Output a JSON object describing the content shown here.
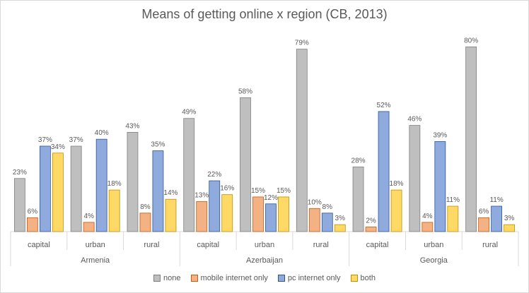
{
  "chart_data": {
    "type": "bar",
    "title": "Means of getting online x region (CB, 2013)",
    "xlabel": "",
    "ylabel": "",
    "ylim": [
      0,
      85
    ],
    "groups": [
      {
        "name": "Armenia",
        "categories": [
          "capital",
          "urban",
          "rural"
        ]
      },
      {
        "name": "Azerbaijan",
        "categories": [
          "capital",
          "urban",
          "rural"
        ]
      },
      {
        "name": "Georgia",
        "categories": [
          "capital",
          "urban",
          "rural"
        ]
      }
    ],
    "series": [
      {
        "name": "none",
        "color": "#bfbfbf",
        "border": "#7f7f7f",
        "values": [
          23,
          37,
          43,
          49,
          58,
          79,
          28,
          46,
          80
        ],
        "labels": [
          "23%",
          "37%",
          "43%",
          "49%",
          "58%",
          "79%",
          "28%",
          "46%",
          "80%"
        ]
      },
      {
        "name": "mobile internet only",
        "color": "#f4b183",
        "border": "#c55a11",
        "values": [
          6,
          4,
          8,
          13,
          15,
          10,
          2,
          4,
          6
        ],
        "labels": [
          "6%",
          "4%",
          "8%",
          "13%",
          "15%",
          "10%",
          "2%",
          "4%",
          "6%"
        ]
      },
      {
        "name": "pc internet only",
        "color": "#8faadc",
        "border": "#2f5597",
        "values": [
          37,
          40,
          35,
          22,
          12,
          8,
          52,
          39,
          11
        ],
        "labels": [
          "37%",
          "40%",
          "35%",
          "22%",
          "12%",
          "8%",
          "52%",
          "39%",
          "11%"
        ]
      },
      {
        "name": "both",
        "color": "#ffd966",
        "border": "#bf9000",
        "values": [
          34,
          18,
          14,
          16,
          15,
          3,
          18,
          11,
          3
        ],
        "labels": [
          "34%",
          "18%",
          "14%",
          "16%",
          "15%",
          "3%",
          "18%",
          "11%",
          "3%"
        ]
      }
    ],
    "legend_position": "bottom",
    "grid": false
  }
}
